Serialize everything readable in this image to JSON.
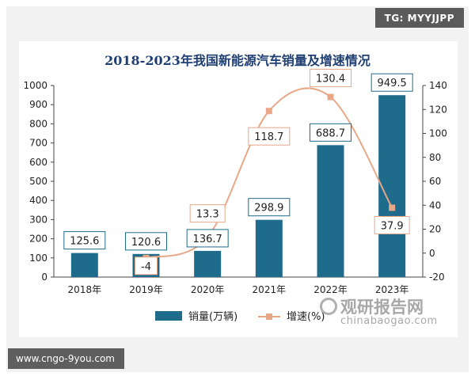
{
  "badges": {
    "top_right": "TG: MYYJJPP",
    "bottom_left": "www.cngo-9you.com"
  },
  "watermark": {
    "title": "观研报告网",
    "subtitle": "chinabaogao.com"
  },
  "colors": {
    "bar": "#1f6b8c",
    "line": "#e8a888",
    "label_border_bar": "#1f6b8c",
    "label_border_line": "#e8a888"
  },
  "chart_data": {
    "type": "bar",
    "title": "2018-2023年我国新能源汽车销量及增速情况",
    "categories": [
      "2018年",
      "2019年",
      "2020年",
      "2021年",
      "2022年",
      "2023年"
    ],
    "series": [
      {
        "name": "销量(万辆)",
        "type": "bar",
        "axis": "left",
        "values": [
          125.6,
          120.6,
          136.7,
          298.9,
          688.7,
          949.5
        ],
        "labels": [
          "125.6",
          "120.6",
          "136.7",
          "298.9",
          "688.7",
          "949.5"
        ]
      },
      {
        "name": "增速(%)",
        "type": "line",
        "axis": "right",
        "values": [
          null,
          -4,
          13.3,
          118.7,
          130.4,
          37.9
        ],
        "labels": [
          "",
          "-4",
          "13.3",
          "118.7",
          "130.4",
          "37.9"
        ]
      }
    ],
    "ylim_left": [
      0,
      1000
    ],
    "ylim_right": [
      -20,
      140
    ],
    "yticks_left": [
      "0",
      "100",
      "200",
      "300",
      "400",
      "500",
      "600",
      "700",
      "800",
      "900",
      "1000"
    ],
    "yticks_right": [
      "-20",
      "0",
      "20",
      "40",
      "60",
      "80",
      "100",
      "120",
      "140"
    ],
    "legend_position": "bottom",
    "grid": false
  }
}
